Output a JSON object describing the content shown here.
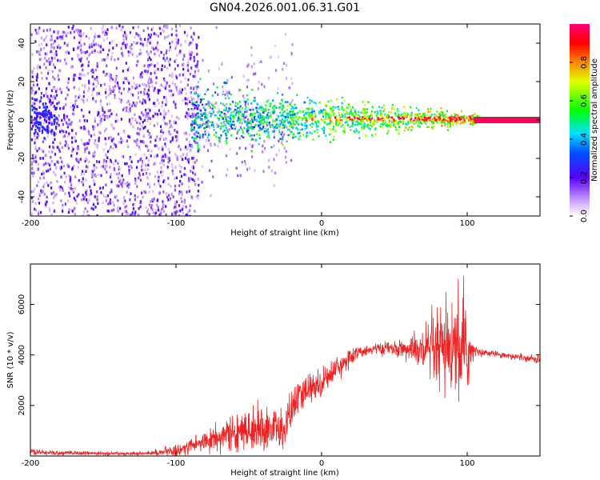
{
  "title": "GN04.2026.001.06.31.G01",
  "chart_data": [
    {
      "type": "heatmap",
      "xlabel": "Height of straight line (km)",
      "ylabel": "Frequency (Hz)",
      "xlim": [
        -200,
        150
      ],
      "ylim": [
        -50,
        50
      ],
      "xticks": [
        -200,
        -100,
        0,
        100
      ],
      "yticks": [
        -40,
        -20,
        0,
        20,
        40
      ],
      "colorbar": {
        "label": "Normalized spectral amplitude",
        "range": [
          0,
          1
        ],
        "ticks": [
          0.0,
          0.2,
          0.4,
          0.6,
          0.8
        ],
        "ticklabels": [
          "0.0",
          "0.2",
          "0.4",
          "0.6",
          "0.8"
        ]
      },
      "description_regions": [
        {
          "x_range": [
            -200,
            -85
          ],
          "freq_range": [
            -50,
            50
          ],
          "amplitude": "low, noisy purple"
        },
        {
          "x_range": [
            -90,
            -20
          ],
          "freq_range": [
            -8,
            8
          ],
          "amplitude": "mixed blue/cyan/green"
        },
        {
          "x_range": [
            -20,
            108
          ],
          "freq_range": [
            -2,
            3
          ],
          "amplitude": "high, green/red ridge near 0-2 Hz"
        },
        {
          "x_range": [
            108,
            150
          ],
          "freq_range": [
            -1,
            1
          ],
          "amplitude": "saturated line"
        }
      ]
    },
    {
      "type": "line",
      "xlabel": "Height of straight line (km)",
      "ylabel": "SNR (10 * v/v)",
      "xlim": [
        -200,
        150
      ],
      "ylim": [
        0,
        7600
      ],
      "xticks": [
        -200,
        -100,
        0,
        100
      ],
      "yticks": [
        2000,
        4000,
        6000
      ],
      "color": "#ee2222",
      "series": [
        {
          "name": "SNR",
          "x": [
            -200,
            -180,
            -150,
            -120,
            -100,
            -80,
            -60,
            -40,
            -30,
            -25,
            -20,
            -10,
            0,
            10,
            20,
            30,
            40,
            50,
            60,
            70,
            80,
            90,
            100,
            105,
            110,
            120,
            130,
            140,
            150
          ],
          "mean": [
            150,
            120,
            100,
            100,
            200,
            600,
            900,
            1100,
            1000,
            1000,
            2000,
            2600,
            2900,
            3500,
            3900,
            4200,
            4250,
            4250,
            4200,
            4100,
            4100,
            4100,
            4100,
            4150,
            4100,
            4050,
            3950,
            3900,
            3800
          ],
          "spread": [
            120,
            80,
            60,
            60,
            200,
            400,
            600,
            800,
            900,
            800,
            700,
            600,
            500,
            400,
            300,
            200,
            200,
            250,
            400,
            800,
            1500,
            1800,
            1500,
            200,
            100,
            100,
            120,
            120,
            150
          ]
        }
      ]
    }
  ]
}
